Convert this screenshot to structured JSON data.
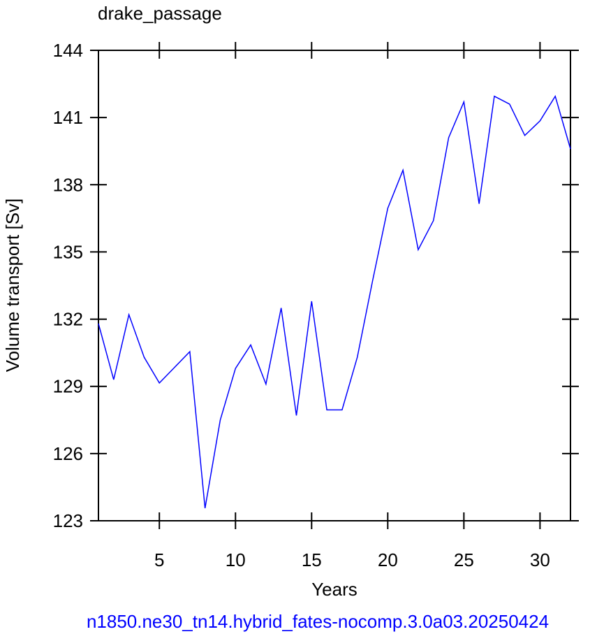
{
  "chart_data": {
    "type": "line",
    "title": "drake_passage",
    "x_label": "Years",
    "y_label": "Volume transport [Sv]",
    "footer": "n1850.ne30_tn14.hybrid_fates-nocomp.3.0a03.20250424",
    "footer_color": "#0000ff",
    "x": [
      1,
      2,
      3,
      4,
      5,
      6,
      7,
      8,
      9,
      10,
      11,
      12,
      13,
      14,
      15,
      16,
      17,
      18,
      19,
      20,
      21,
      22,
      23,
      24,
      25,
      26,
      27,
      28,
      29,
      30,
      31,
      32
    ],
    "series": [
      {
        "color": "#0000ff",
        "values": [
          131.8,
          129.3,
          132.2,
          130.3,
          129.15,
          129.85,
          130.55,
          123.56,
          127.5,
          129.8,
          130.85,
          129.1,
          132.5,
          127.7,
          132.8,
          127.95,
          127.95,
          130.3,
          133.7,
          136.95,
          138.65,
          135.1,
          136.4,
          140.1,
          141.7,
          137.15,
          141.95,
          141.6,
          140.2,
          140.85,
          141.95,
          139.6
        ]
      }
    ],
    "xlim": [
      1,
      32
    ],
    "xticks": [
      5,
      10,
      15,
      20,
      25,
      30
    ],
    "ylim": [
      123,
      144
    ],
    "yticks": [
      123,
      126,
      129,
      132,
      135,
      138,
      141,
      144
    ]
  }
}
